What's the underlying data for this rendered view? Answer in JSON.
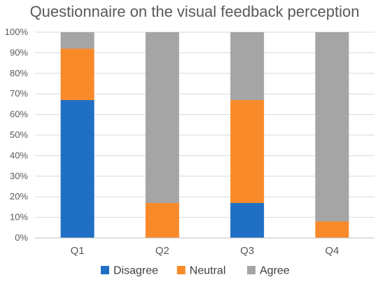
{
  "chart_data": {
    "type": "bar",
    "stacked": true,
    "title": "Questionnaire on the visual feedback perception",
    "xlabel": "",
    "ylabel": "",
    "categories": [
      "Q1",
      "Q2",
      "Q3",
      "Q4"
    ],
    "series": [
      {
        "name": "Disagree",
        "color": "#1f6fc5",
        "values": [
          67,
          0,
          17,
          0
        ]
      },
      {
        "name": "Neutral",
        "color": "#f98a2a",
        "values": [
          25,
          17,
          50,
          8
        ]
      },
      {
        "name": "Agree",
        "color": "#a5a5a5",
        "values": [
          8,
          83,
          33,
          92
        ]
      }
    ],
    "ylim": [
      0,
      100
    ],
    "yticks": [
      "0%",
      "10%",
      "20%",
      "30%",
      "40%",
      "50%",
      "60%",
      "70%",
      "80%",
      "90%",
      "100%"
    ],
    "grid": true,
    "legend_position": "bottom"
  }
}
